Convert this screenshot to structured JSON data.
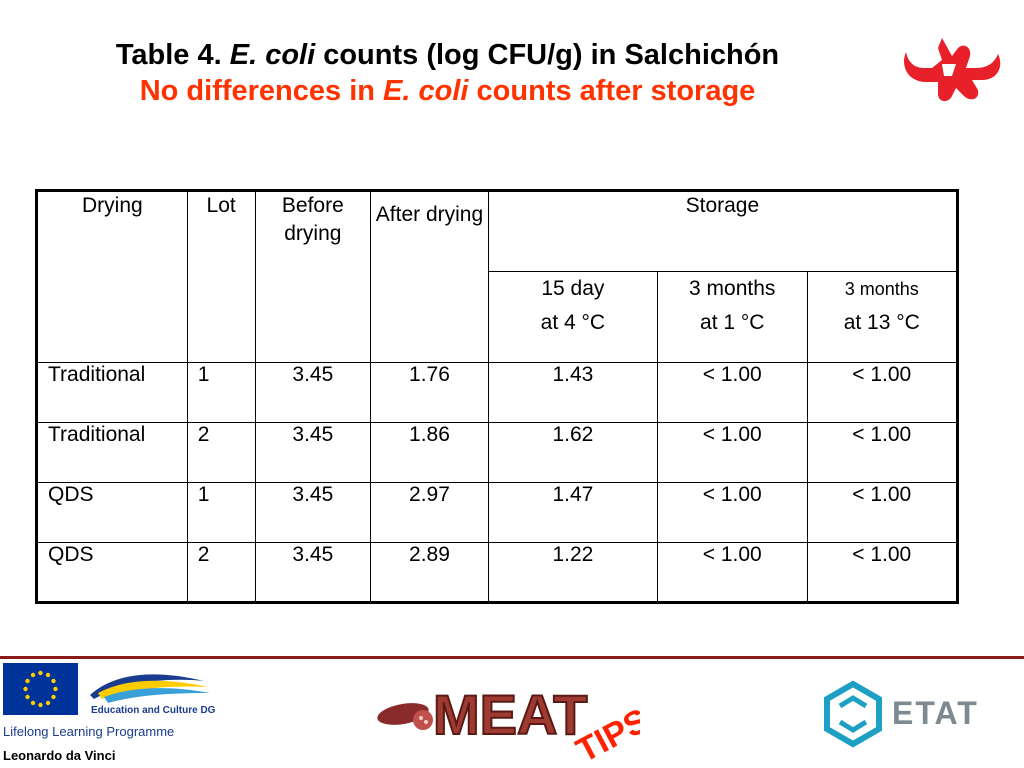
{
  "title": {
    "prefix": "Table 4. ",
    "organism": "E. coli",
    "rest": " counts (log CFU/g) in Salchichón"
  },
  "subtitle": {
    "prefix": "No differences in ",
    "organism": "E. coli",
    "rest": " counts after storage"
  },
  "table": {
    "headers": {
      "drying": "Drying",
      "lot": "Lot",
      "before_drying": "Before drying",
      "after_drying": "After drying",
      "storage": "Storage",
      "storage_15d_line1": "15 day",
      "storage_15d_line2": "at 4 °C",
      "storage_3m1_line1": "3 months",
      "storage_3m1_line2": "at 1 °C",
      "storage_3m13_line1": "3 months",
      "storage_3m13_line2": "at 13 °C"
    },
    "rows": [
      {
        "drying": "Traditional",
        "lot": "1",
        "before": "3.45",
        "after": "1.76",
        "d15": "1.43",
        "m3_1": "< 1.00",
        "m3_13": "< 1.00"
      },
      {
        "drying": "Traditional",
        "lot": "2",
        "before": "3.45",
        "after": "1.86",
        "d15": "1.62",
        "m3_1": "< 1.00",
        "m3_13": "< 1.00"
      },
      {
        "drying": "QDS",
        "lot": "1",
        "before": "3.45",
        "after": "2.97",
        "d15": "1.47",
        "m3_1": "< 1.00",
        "m3_13": "< 1.00"
      },
      {
        "drying": "QDS",
        "lot": "2",
        "before": "3.45",
        "after": "2.89",
        "d15": "1.22",
        "m3_1": "< 1.00",
        "m3_13": "< 1.00"
      }
    ]
  },
  "footer": {
    "education_culture": "Education and Culture DG",
    "lifelong": "Lifelong Learning Programme",
    "leonardo": "Leonardo da Vinci",
    "meat_logo_text": "MEAT",
    "tips_text": "TIPS",
    "etat_logo_text": "ETAT"
  },
  "colors": {
    "title": "#000000",
    "subtitle": "#ff3300",
    "divider": "#8b1a1a",
    "eu_blue": "#003399",
    "logo_red": "#e8202a",
    "etat_teal": "#1e9fc4"
  },
  "icons": [
    "bull-logo-icon",
    "eu-flag-icon",
    "education-swoosh-icon",
    "meat-tips-logo-icon",
    "etat-logo-icon"
  ]
}
